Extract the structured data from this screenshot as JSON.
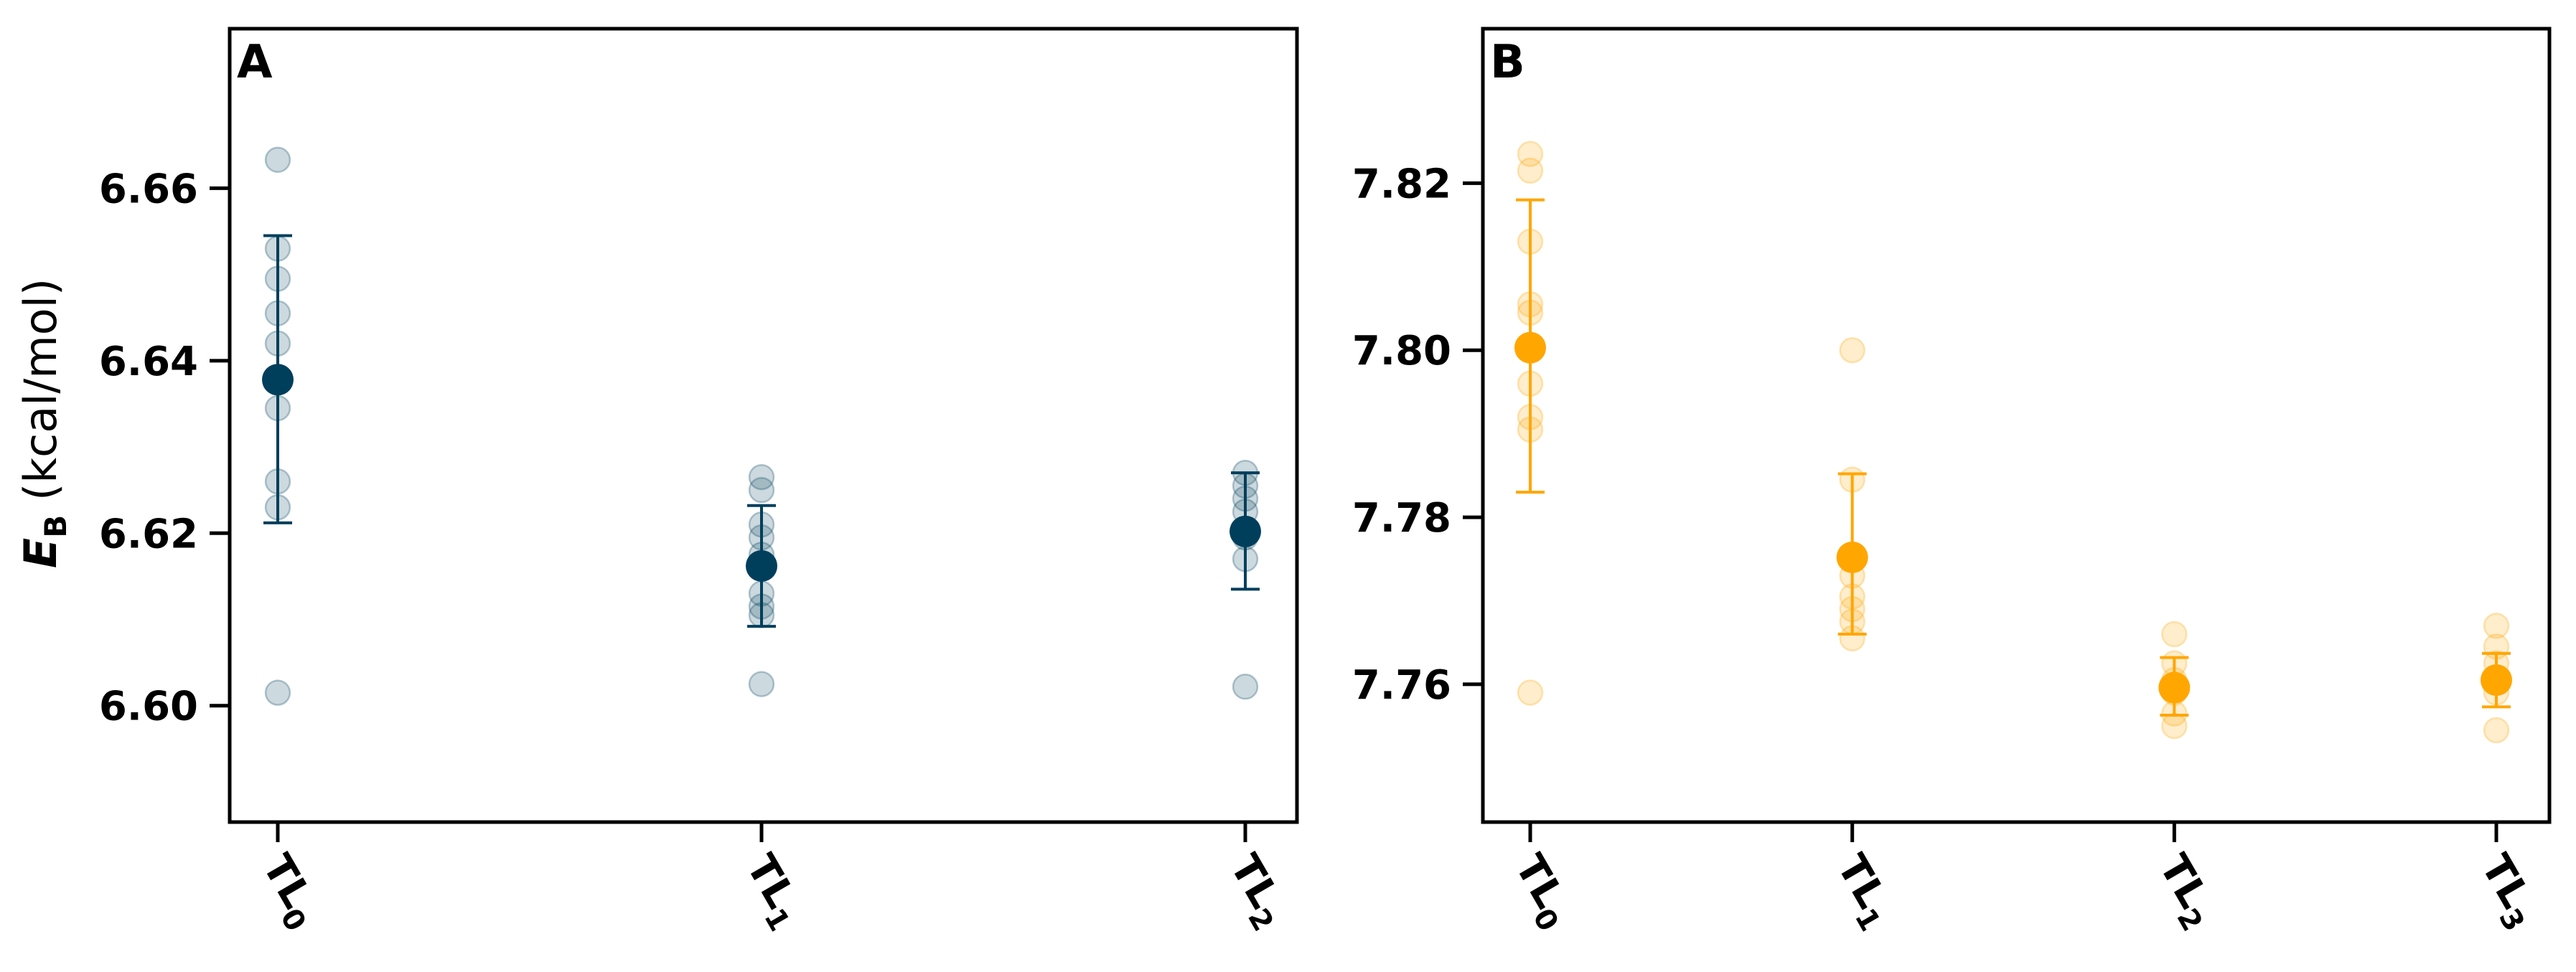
{
  "figure": {
    "ylabel_symbol": "E",
    "ylabel_subscript": "B",
    "ylabel_unit": " (kcal/mol)"
  },
  "chart_data": [
    {
      "type": "scatter",
      "panel_label": "A",
      "color": "#003f5c",
      "categories": [
        {
          "base": "TL",
          "sub": "0"
        },
        {
          "base": "TL",
          "sub": "1"
        },
        {
          "base": "TL",
          "sub": "2"
        }
      ],
      "ylim": [
        6.5865,
        6.6785
      ],
      "yticks": [
        "6.60",
        "6.62",
        "6.64",
        "6.66"
      ],
      "grid": false,
      "points": [
        [
          6.6633,
          6.653,
          6.6495,
          6.6455,
          6.642,
          6.6345,
          6.626,
          6.623,
          6.6015
        ],
        [
          6.6265,
          6.625,
          6.621,
          6.6195,
          6.6175,
          6.613,
          6.6115,
          6.6105,
          6.6025
        ],
        [
          6.627,
          6.6255,
          6.624,
          6.6225,
          6.6195,
          6.617,
          6.6022
        ]
      ],
      "means": [
        6.6378,
        6.6162,
        6.6202
      ],
      "err_low": [
        6.6212,
        6.6092,
        6.6135
      ],
      "err_high": [
        6.6545,
        6.6232,
        6.627
      ]
    },
    {
      "type": "scatter",
      "panel_label": "B",
      "color": "#ffa600",
      "categories": [
        {
          "base": "TL",
          "sub": "0"
        },
        {
          "base": "TL",
          "sub": "1"
        },
        {
          "base": "TL",
          "sub": "2"
        },
        {
          "base": "TL",
          "sub": "3"
        }
      ],
      "ylim": [
        7.7435,
        7.8385
      ],
      "yticks": [
        "7.76",
        "7.78",
        "7.80",
        "7.82"
      ],
      "grid": false,
      "points": [
        [
          7.8235,
          7.8215,
          7.813,
          7.8055,
          7.8045,
          7.796,
          7.792,
          7.7905,
          7.759
        ],
        [
          7.8,
          7.7845,
          7.773,
          7.7705,
          7.769,
          7.7675,
          7.7655
        ],
        [
          7.766,
          7.7625,
          7.7605,
          7.759,
          7.7565,
          7.755
        ],
        [
          7.767,
          7.7645,
          7.7625,
          7.7605,
          7.759,
          7.7545
        ]
      ],
      "means": [
        7.8003,
        7.7752,
        7.7596,
        7.7605
      ],
      "err_low": [
        7.783,
        7.766,
        7.7563,
        7.7573
      ],
      "err_high": [
        7.818,
        7.7852,
        7.7632,
        7.7637
      ]
    }
  ]
}
